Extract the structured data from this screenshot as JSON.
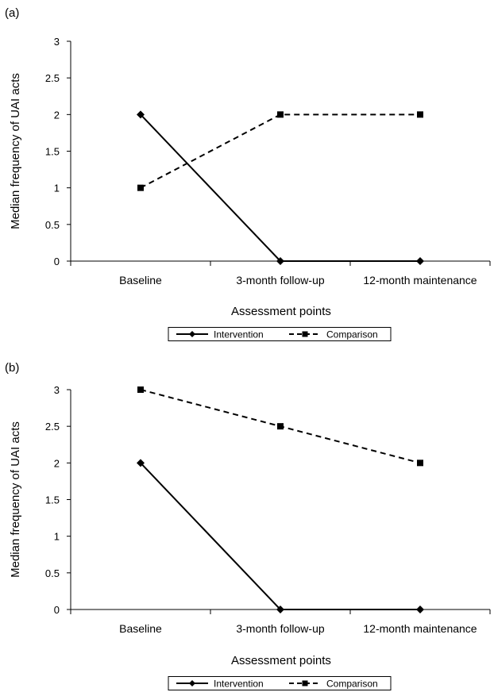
{
  "chart_data": [
    {
      "type": "line",
      "panel_label": "(a)",
      "ylabel": "Median frequency of UAI acts",
      "xlabel": "Assessment points",
      "categories": [
        "Baseline",
        "3-month follow-up",
        "12-month maintenance"
      ],
      "yticks": [
        "0",
        "0.5",
        "1",
        "1.5",
        "2",
        "2.5",
        "3"
      ],
      "ylim": [
        0,
        3
      ],
      "grid": false,
      "legend_position": "bottom-center",
      "series": [
        {
          "name": "Intervention",
          "values": [
            2,
            0,
            0
          ],
          "line_style": "solid",
          "marker": "diamond",
          "color": "#000000"
        },
        {
          "name": "Comparison",
          "values": [
            1,
            2,
            2
          ],
          "line_style": "dashed",
          "marker": "square",
          "color": "#000000"
        }
      ]
    },
    {
      "type": "line",
      "panel_label": "(b)",
      "ylabel": "Median frequency of UAI acts",
      "xlabel": "Assessment points",
      "categories": [
        "Baseline",
        "3-month follow-up",
        "12-month maintenance"
      ],
      "yticks": [
        "0",
        "0.5",
        "1",
        "1.5",
        "2",
        "2.5",
        "3"
      ],
      "ylim": [
        0,
        3
      ],
      "grid": false,
      "legend_position": "bottom-center",
      "series": [
        {
          "name": "Intervention",
          "values": [
            2,
            0,
            0
          ],
          "line_style": "solid",
          "marker": "diamond",
          "color": "#000000"
        },
        {
          "name": "Comparison",
          "values": [
            3,
            2.5,
            2
          ],
          "line_style": "dashed",
          "marker": "square",
          "color": "#000000"
        }
      ]
    }
  ]
}
